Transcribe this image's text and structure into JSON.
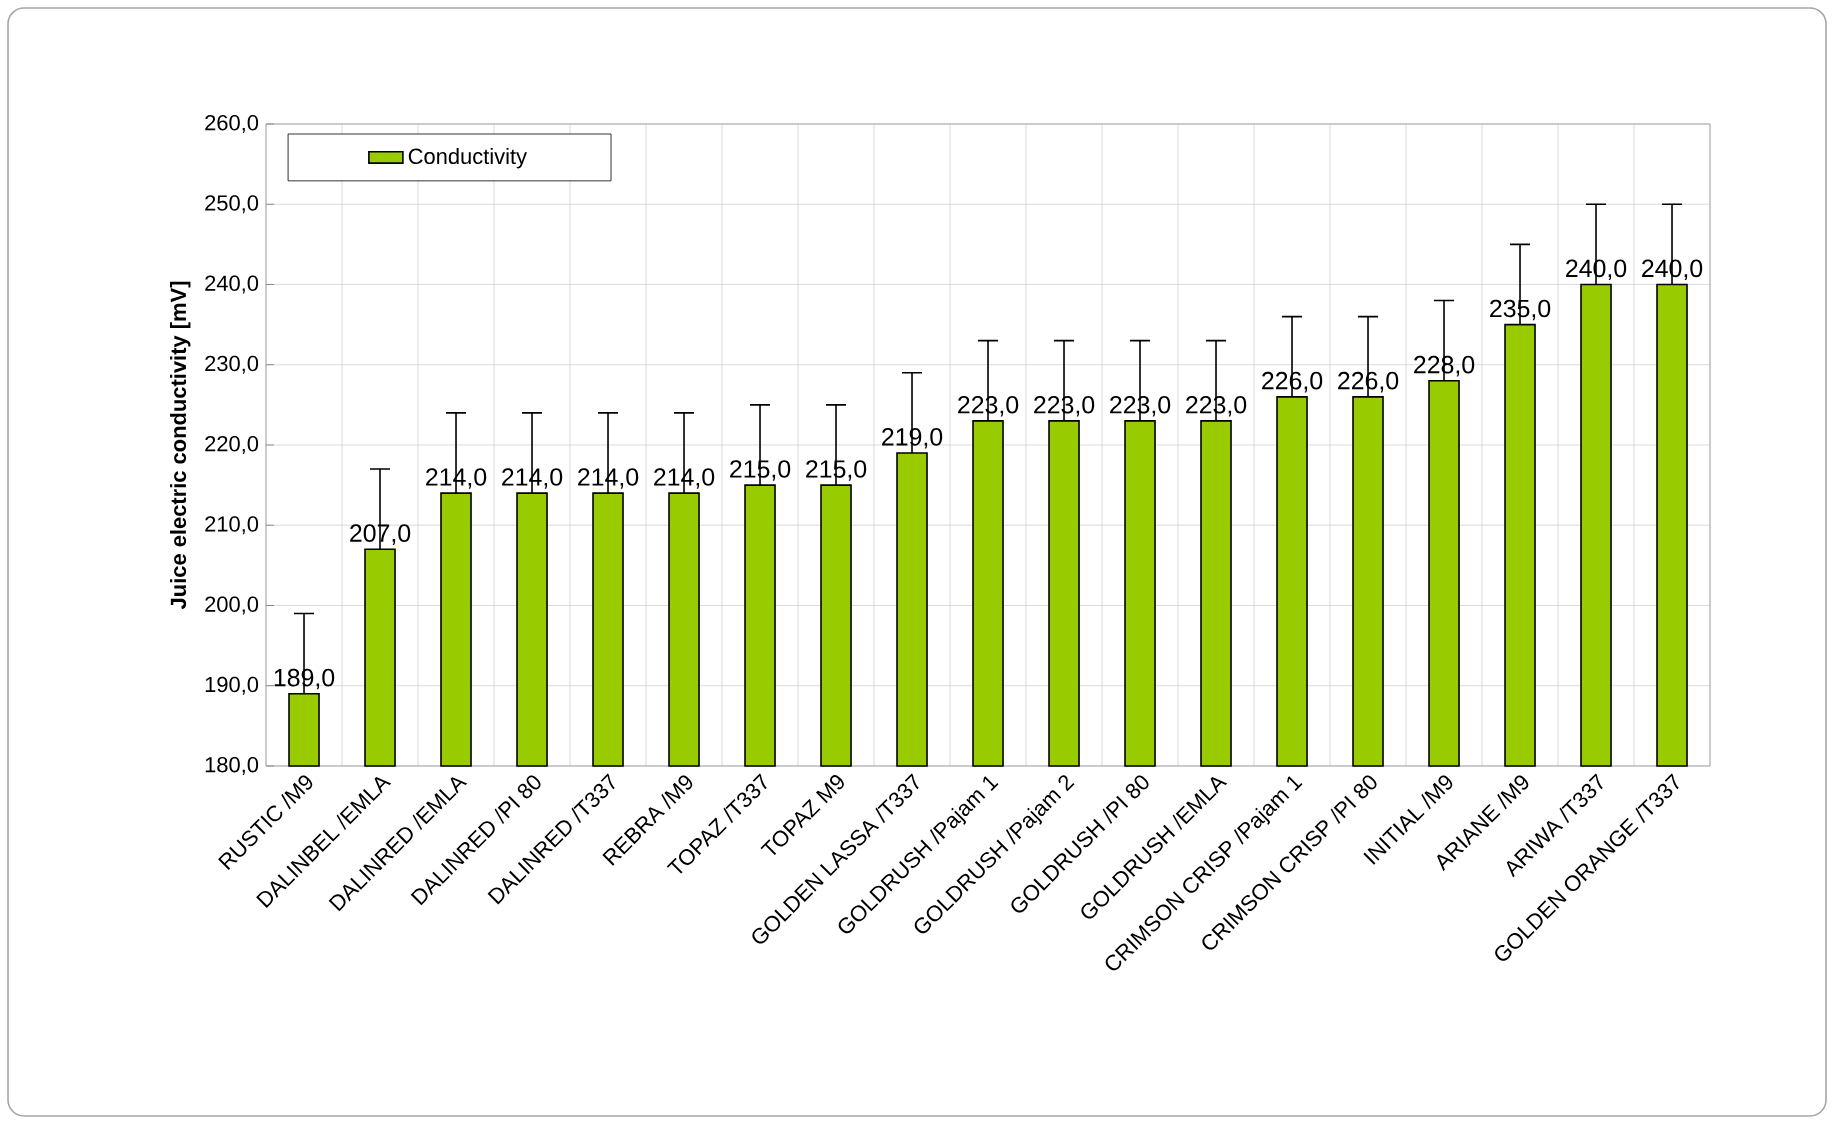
{
  "chart_data": {
    "type": "bar",
    "ylabel": "Juice electric conductivity [mV]",
    "categories": [
      "RUSTIC /M9",
      "DALINBEL /EMLA",
      "DALINRED /EMLA",
      "DALINRED /PI 80",
      "DALINRED /T337",
      "REBRA /M9",
      "TOPAZ /T337",
      "TOPAZ M9",
      "GOLDEN LASSA /T337",
      "GOLDRUSH /Pajam 1",
      "GOLDRUSH /Pajam 2",
      "GOLDRUSH /PI 80",
      "GOLDRUSH /EMLA",
      "CRIMSON CRISP /Pajam 1",
      "CRIMSON CRISP /PI 80",
      "INITIAL /M9",
      "ARIANE /M9",
      "ARIWA /T337",
      "GOLDEN ORANGE /T337"
    ],
    "series": [
      {
        "name": "Conductivity",
        "color": "#99cc00",
        "values": [
          189,
          207,
          214,
          214,
          214,
          214,
          215,
          215,
          219,
          223,
          223,
          223,
          223,
          226,
          226,
          228,
          235,
          240,
          240
        ],
        "errors": [
          [
            189,
            199
          ],
          [
            207,
            217
          ],
          [
            214,
            224
          ],
          [
            214,
            224
          ],
          [
            214,
            224
          ],
          [
            214,
            224
          ],
          [
            215,
            225
          ],
          [
            215,
            225
          ],
          [
            219,
            229
          ],
          [
            223,
            233
          ],
          [
            223,
            233
          ],
          [
            223,
            233
          ],
          [
            223,
            233
          ],
          [
            226,
            236
          ],
          [
            226,
            236
          ],
          [
            228,
            238
          ],
          [
            235,
            245
          ],
          [
            240,
            250
          ],
          [
            240,
            250
          ]
        ],
        "value_labels": [
          "189,0",
          "207,0",
          "214,0",
          "214,0",
          "214,0",
          "214,0",
          "215,0",
          "215,0",
          "219,0",
          "223,0",
          "223,0",
          "223,0",
          "223,0",
          "226,0",
          "226,0",
          "228,0",
          "235,0",
          "240,0",
          "240,0"
        ]
      }
    ],
    "ylim": [
      180,
      260
    ],
    "yticks": [
      {
        "value": 180,
        "label": "180,0"
      },
      {
        "value": 190,
        "label": "190,0"
      },
      {
        "value": 200,
        "label": "200,0"
      },
      {
        "value": 210,
        "label": "210,0"
      },
      {
        "value": 220,
        "label": "220,0"
      },
      {
        "value": 230,
        "label": "230,0"
      },
      {
        "value": 240,
        "label": "240,0"
      },
      {
        "value": 250,
        "label": "250,0"
      },
      {
        "value": 260,
        "label": "260,0"
      }
    ],
    "grid": true,
    "legend": "top left"
  }
}
